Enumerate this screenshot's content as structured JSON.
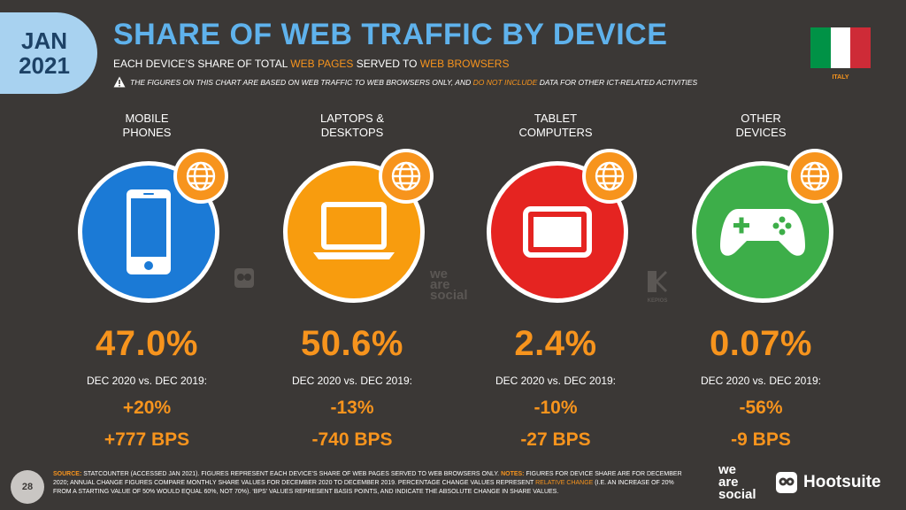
{
  "badge": {
    "month": "JAN",
    "year": "2021"
  },
  "header": {
    "title": "SHARE OF WEB TRAFFIC BY DEVICE",
    "subtitle_pre": "EACH DEVICE’S SHARE OF TOTAL ",
    "subtitle_hl1": "WEB PAGES",
    "subtitle_mid": " SERVED TO ",
    "subtitle_hl2": "WEB BROWSERS",
    "note_pre": "THE FIGURES ON THIS CHART ARE BASED ON WEB TRAFFIC TO WEB BROWSERS ONLY, AND ",
    "note_hl": "DO NOT INCLUDE",
    "note_post": " DATA FOR OTHER ICT-RELATED ACTIVITIES"
  },
  "country": "ITALY",
  "colors": {
    "mobile": "#1b7ad6",
    "laptop": "#f89c0e",
    "tablet": "#e52421",
    "other": "#3dae49",
    "accent": "#f7941d"
  },
  "chart_data": {
    "type": "table",
    "categories": [
      "MOBILE PHONES",
      "LAPTOPS & DESKTOPS",
      "TABLET COMPUTERS",
      "OTHER DEVICES"
    ],
    "series": [
      {
        "name": "share",
        "values": [
          "47.0%",
          "50.6%",
          "2.4%",
          "0.07%"
        ]
      },
      {
        "name": "relative_change",
        "values": [
          "+20%",
          "-13%",
          "-10%",
          "-56%"
        ]
      },
      {
        "name": "bps_change",
        "values": [
          "+777 BPS",
          "-740 BPS",
          "-27 BPS",
          "-9 BPS"
        ]
      }
    ],
    "items": [
      {
        "label_l1": "MOBILE",
        "label_l2": "PHONES",
        "icon": "smartphone-icon",
        "share": "47.0%",
        "period": "DEC 2020 vs. DEC 2019:",
        "change": "+20%",
        "bps": "+777 BPS"
      },
      {
        "label_l1": "LAPTOPS &",
        "label_l2": "DESKTOPS",
        "icon": "laptop-icon",
        "share": "50.6%",
        "period": "DEC 2020 vs. DEC 2019:",
        "change": "-13%",
        "bps": "-740 BPS"
      },
      {
        "label_l1": "TABLET",
        "label_l2": "COMPUTERS",
        "icon": "tablet-icon",
        "share": "2.4%",
        "period": "DEC 2020 vs. DEC 2019:",
        "change": "-10%",
        "bps": "-27 BPS"
      },
      {
        "label_l1": "OTHER",
        "label_l2": "DEVICES",
        "icon": "gamepad-icon",
        "share": "0.07%",
        "period": "DEC 2020 vs. DEC 2019:",
        "change": "-56%",
        "bps": "-9 BPS"
      }
    ]
  },
  "watermarks": {
    "ws_l1": "we",
    "ws_l2": "are",
    "ws_l3": "social",
    "kepios": "KEPIOS"
  },
  "footer": {
    "page": "28",
    "source_label": "SOURCE:",
    "source_text": " STATCOUNTER (ACCESSED JAN 2021). FIGURES REPRESENT EACH DEVICE’S SHARE OF WEB PAGES SERVED TO WEB BROWSERS ONLY. ",
    "notes_label": "NOTES:",
    "notes_text": " FIGURES FOR DEVICE SHARE ARE FOR DECEMBER 2020; ANNUAL CHANGE FIGURES COMPARE MONTHLY SHARE VALUES FOR DECEMBER 2020 TO DECEMBER 2019. PERCENTAGE CHANGE VALUES REPRESENT ",
    "notes_hl": "RELATIVE CHANGE",
    "notes_end": " (I.E. AN INCREASE OF 20% FROM A STARTING VALUE OF 50% WOULD EQUAL 60%, NOT 70%). ‘BPS’ VALUES REPRESENT BASIS POINTS, AND INDICATE THE ABSOLUTE CHANGE IN SHARE VALUES.",
    "ws_l1": "we",
    "ws_l2": "are",
    "ws_l3": "social",
    "hootsuite": "Hootsuite"
  }
}
